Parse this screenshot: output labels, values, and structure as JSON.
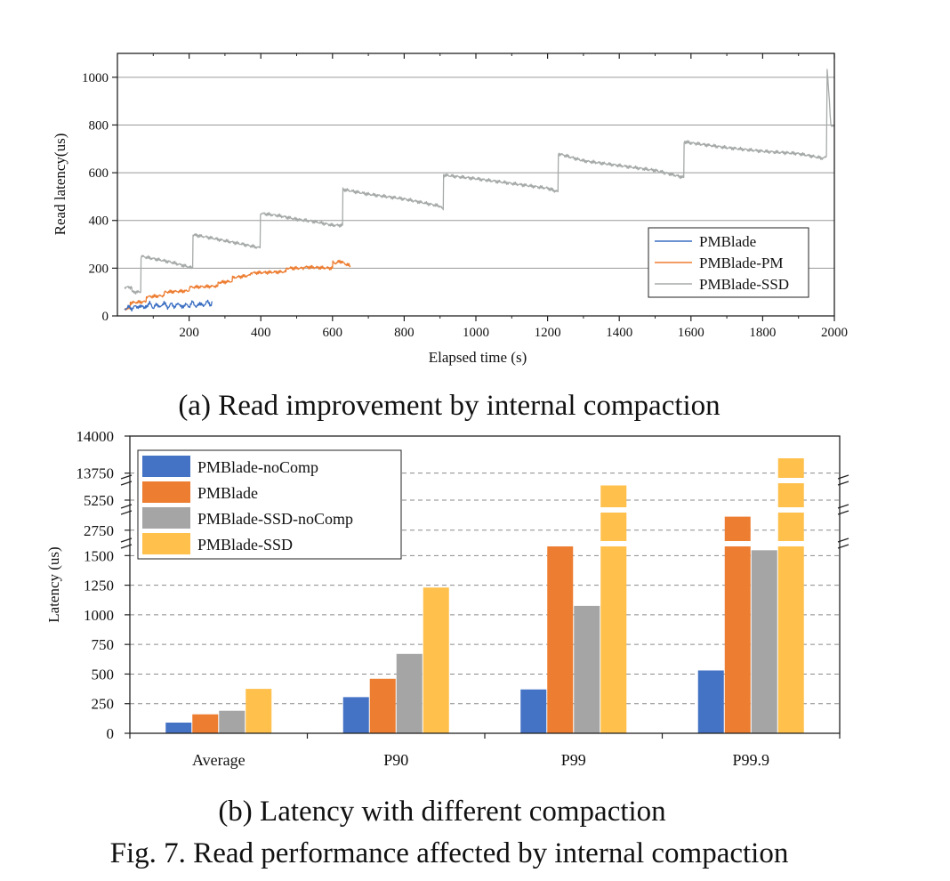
{
  "figure_caption": "Fig. 7.  Read performance affected by internal compaction",
  "chart_data": [
    {
      "type": "line",
      "caption": "(a) Read improvement by internal compaction",
      "xlabel": "Elapsed time (s)",
      "ylabel": "Read latency(us)",
      "xlim": [
        0,
        2000
      ],
      "ylim": [
        0,
        1100
      ],
      "xticks": [
        200,
        400,
        600,
        800,
        1000,
        1200,
        1400,
        1600,
        1800,
        2000
      ],
      "yticks": [
        0,
        200,
        400,
        600,
        800,
        1000
      ],
      "grid": "horizontal",
      "legend_position": "bottom-right",
      "series": [
        {
          "name": "PMBlade",
          "color": "#3a6ec2",
          "x": [
            20,
            30,
            40,
            50,
            60,
            70,
            75,
            90,
            100,
            110,
            120,
            130,
            140,
            150,
            160,
            170,
            180,
            190,
            200,
            210,
            220,
            230,
            240,
            250,
            260,
            265
          ],
          "y": [
            25,
            40,
            28,
            42,
            35,
            45,
            30,
            55,
            32,
            50,
            35,
            58,
            33,
            52,
            36,
            55,
            34,
            50,
            38,
            60,
            36,
            55,
            40,
            62,
            45,
            58
          ]
        },
        {
          "name": "PMBlade-PM",
          "color": "#ed7d31",
          "x": [
            20,
            35,
            36,
            80,
            81,
            130,
            131,
            200,
            201,
            280,
            281,
            320,
            321,
            370,
            371,
            470,
            471,
            520,
            521,
            600,
            601,
            610,
            620,
            640,
            650
          ],
          "y": [
            30,
            30,
            55,
            60,
            80,
            85,
            100,
            105,
            120,
            125,
            140,
            145,
            160,
            170,
            180,
            185,
            200,
            200,
            205,
            200,
            225,
            220,
            230,
            215,
            210
          ]
        },
        {
          "name": "PMBlade-SSD",
          "color": "#a5aaa8",
          "x": [
            20,
            40,
            41,
            65,
            66,
            100,
            150,
            200,
            210,
            211,
            250,
            300,
            350,
            398,
            399,
            450,
            500,
            550,
            600,
            628,
            629,
            700,
            800,
            900,
            909,
            910,
            1000,
            1100,
            1200,
            1229,
            1230,
            1300,
            1400,
            1500,
            1580,
            1581,
            1600,
            1700,
            1800,
            1900,
            1970,
            1978,
            1980,
            1990,
            2000
          ],
          "y": [
            120,
            120,
            100,
            100,
            250,
            240,
            225,
            205,
            200,
            340,
            330,
            315,
            300,
            285,
            430,
            420,
            405,
            395,
            380,
            380,
            530,
            510,
            490,
            460,
            445,
            590,
            575,
            555,
            535,
            520,
            680,
            650,
            630,
            610,
            580,
            730,
            725,
            705,
            690,
            680,
            660,
            670,
            1040,
            800,
            795
          ]
        }
      ]
    },
    {
      "type": "bar",
      "caption": "(b) Latency with different compaction",
      "ylabel": "Latency (us)",
      "ylim": [
        0,
        14000
      ],
      "axis_breaks": [
        [
          1600,
          2650
        ],
        [
          2900,
          5150
        ],
        [
          5450,
          13700
        ]
      ],
      "yticks": [
        0,
        250,
        500,
        750,
        1000,
        1250,
        1500,
        2750,
        5250,
        13750,
        14000
      ],
      "grid": "horizontal dashed",
      "legend_position": "top-left",
      "categories": [
        "Average",
        "P90",
        "P99",
        "P99.9"
      ],
      "series": [
        {
          "name": "PMBlade-noComp",
          "color": "#4472c4",
          "values": [
            90,
            305,
            370,
            530
          ]
        },
        {
          "name": "PMBlade",
          "color": "#ed7d31",
          "values": [
            160,
            460,
            1620,
            2850
          ]
        },
        {
          "name": "PMBlade-SSD-noComp",
          "color": "#a5a5a5",
          "values": [
            190,
            670,
            1075,
            1545
          ]
        },
        {
          "name": "PMBlade-SSD",
          "color": "#ffc04c",
          "values": [
            375,
            1230,
            5400,
            13850
          ]
        }
      ]
    }
  ]
}
